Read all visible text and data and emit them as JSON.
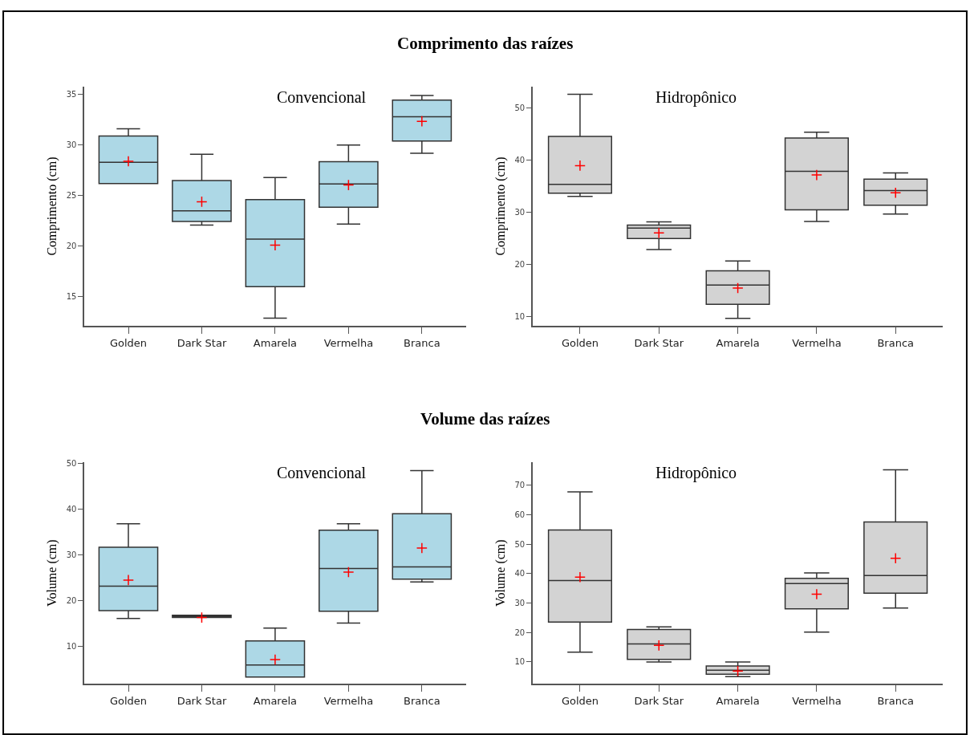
{
  "chart_data": [
    {
      "type": "box",
      "title": "Comprimento das raízes",
      "subtitle": "Convencional",
      "ylabel": "Comprimento (cm)",
      "categories": [
        "Golden",
        "Dark Star",
        "Amarela",
        "Vermelha",
        "Branca"
      ],
      "color": "#add8e6",
      "ylim": [
        12.1,
        35.8
      ],
      "yticks": [
        15,
        20,
        25,
        30,
        35
      ],
      "marker": "cross",
      "boxes": [
        {
          "low": 26.2,
          "q1": 26.2,
          "median": 28.3,
          "q3": 30.9,
          "high": 31.6,
          "mean": 28.4
        },
        {
          "low": 22.1,
          "q1": 22.45,
          "median": 23.5,
          "q3": 26.5,
          "high": 29.1,
          "mean": 24.4
        },
        {
          "low": 12.9,
          "q1": 16.0,
          "median": 20.7,
          "q3": 24.6,
          "high": 26.8,
          "mean": 20.1
        },
        {
          "low": 22.2,
          "q1": 23.85,
          "median": 26.15,
          "q3": 28.35,
          "high": 30.0,
          "mean": 26.05
        },
        {
          "low": 29.2,
          "q1": 30.4,
          "median": 32.8,
          "q3": 34.45,
          "high": 34.9,
          "mean": 32.35
        }
      ]
    },
    {
      "type": "box",
      "subtitle": "Hidropônico",
      "ylabel": "Comprimento (cm)",
      "categories": [
        "Golden",
        "Dark Star",
        "Amarela",
        "Vermelha",
        "Branca"
      ],
      "color": "#d3d3d3",
      "ylim": [
        8.2,
        54.2
      ],
      "yticks": [
        10,
        20,
        30,
        40,
        50
      ],
      "marker": "cross",
      "boxes": [
        {
          "low": 33.1,
          "q1": 33.7,
          "median": 35.4,
          "q3": 44.6,
          "high": 52.7,
          "mean": 39.0
        },
        {
          "low": 22.9,
          "q1": 25.0,
          "median": 27.0,
          "q3": 27.6,
          "high": 28.2,
          "mean": 26.1
        },
        {
          "low": 9.7,
          "q1": 12.4,
          "median": 16.1,
          "q3": 18.8,
          "high": 20.7,
          "mean": 15.5
        },
        {
          "low": 28.3,
          "q1": 30.5,
          "median": 37.9,
          "q3": 44.3,
          "high": 45.4,
          "mean": 37.2
        },
        {
          "low": 29.7,
          "q1": 31.4,
          "median": 34.2,
          "q3": 36.4,
          "high": 37.6,
          "mean": 33.8
        }
      ]
    },
    {
      "type": "box",
      "title": "Volume das raízes",
      "subtitle": "Convencional",
      "ylabel": "Volume (cm)",
      "categories": [
        "Golden",
        "Dark Star",
        "Amarela",
        "Vermelha",
        "Branca"
      ],
      "color": "#add8e6",
      "ylim": [
        1.75,
        50.3
      ],
      "yticks": [
        10,
        20,
        30,
        40,
        50
      ],
      "marker": "cross",
      "boxes": [
        {
          "low": 16.1,
          "q1": 17.8,
          "median": 23.15,
          "q3": 31.7,
          "high": 36.8,
          "mean": 24.5
        },
        {
          "low": 16.3,
          "q1": 16.3,
          "median": 16.6,
          "q3": 16.8,
          "high": 16.8,
          "mean": 16.3
        },
        {
          "low": 3.3,
          "q1": 3.3,
          "median": 5.9,
          "q3": 11.2,
          "high": 14.0,
          "mean": 7.1
        },
        {
          "low": 15.1,
          "q1": 17.7,
          "median": 27.05,
          "q3": 35.4,
          "high": 36.8,
          "mean": 26.25
        },
        {
          "low": 24.1,
          "q1": 24.7,
          "median": 27.4,
          "q3": 39.0,
          "high": 48.45,
          "mean": 31.5
        }
      ]
    },
    {
      "type": "box",
      "subtitle": "Hidropônico",
      "ylabel": "Volume (cm)",
      "categories": [
        "Golden",
        "Dark Star",
        "Amarela",
        "Vermelha",
        "Branca"
      ],
      "color": "#d3d3d3",
      "ylim": [
        2.5,
        77.8
      ],
      "yticks": [
        10,
        20,
        30,
        40,
        50,
        60,
        70
      ],
      "marker": "cross",
      "boxes": [
        {
          "low": 13.3,
          "q1": 23.5,
          "median": 37.6,
          "q3": 54.8,
          "high": 67.7,
          "mean": 38.8
        },
        {
          "low": 10.0,
          "q1": 10.9,
          "median": 16.1,
          "q3": 21.0,
          "high": 21.9,
          "mean": 15.6
        },
        {
          "low": 5.0,
          "q1": 5.8,
          "median": 7.2,
          "q3": 8.6,
          "high": 10.0,
          "mean": 6.9
        },
        {
          "low": 20.1,
          "q1": 28.0,
          "median": 36.6,
          "q3": 38.4,
          "high": 40.2,
          "mean": 33.0
        },
        {
          "low": 28.3,
          "q1": 33.3,
          "median": 39.3,
          "q3": 57.5,
          "high": 75.2,
          "mean": 45.2
        }
      ]
    }
  ]
}
